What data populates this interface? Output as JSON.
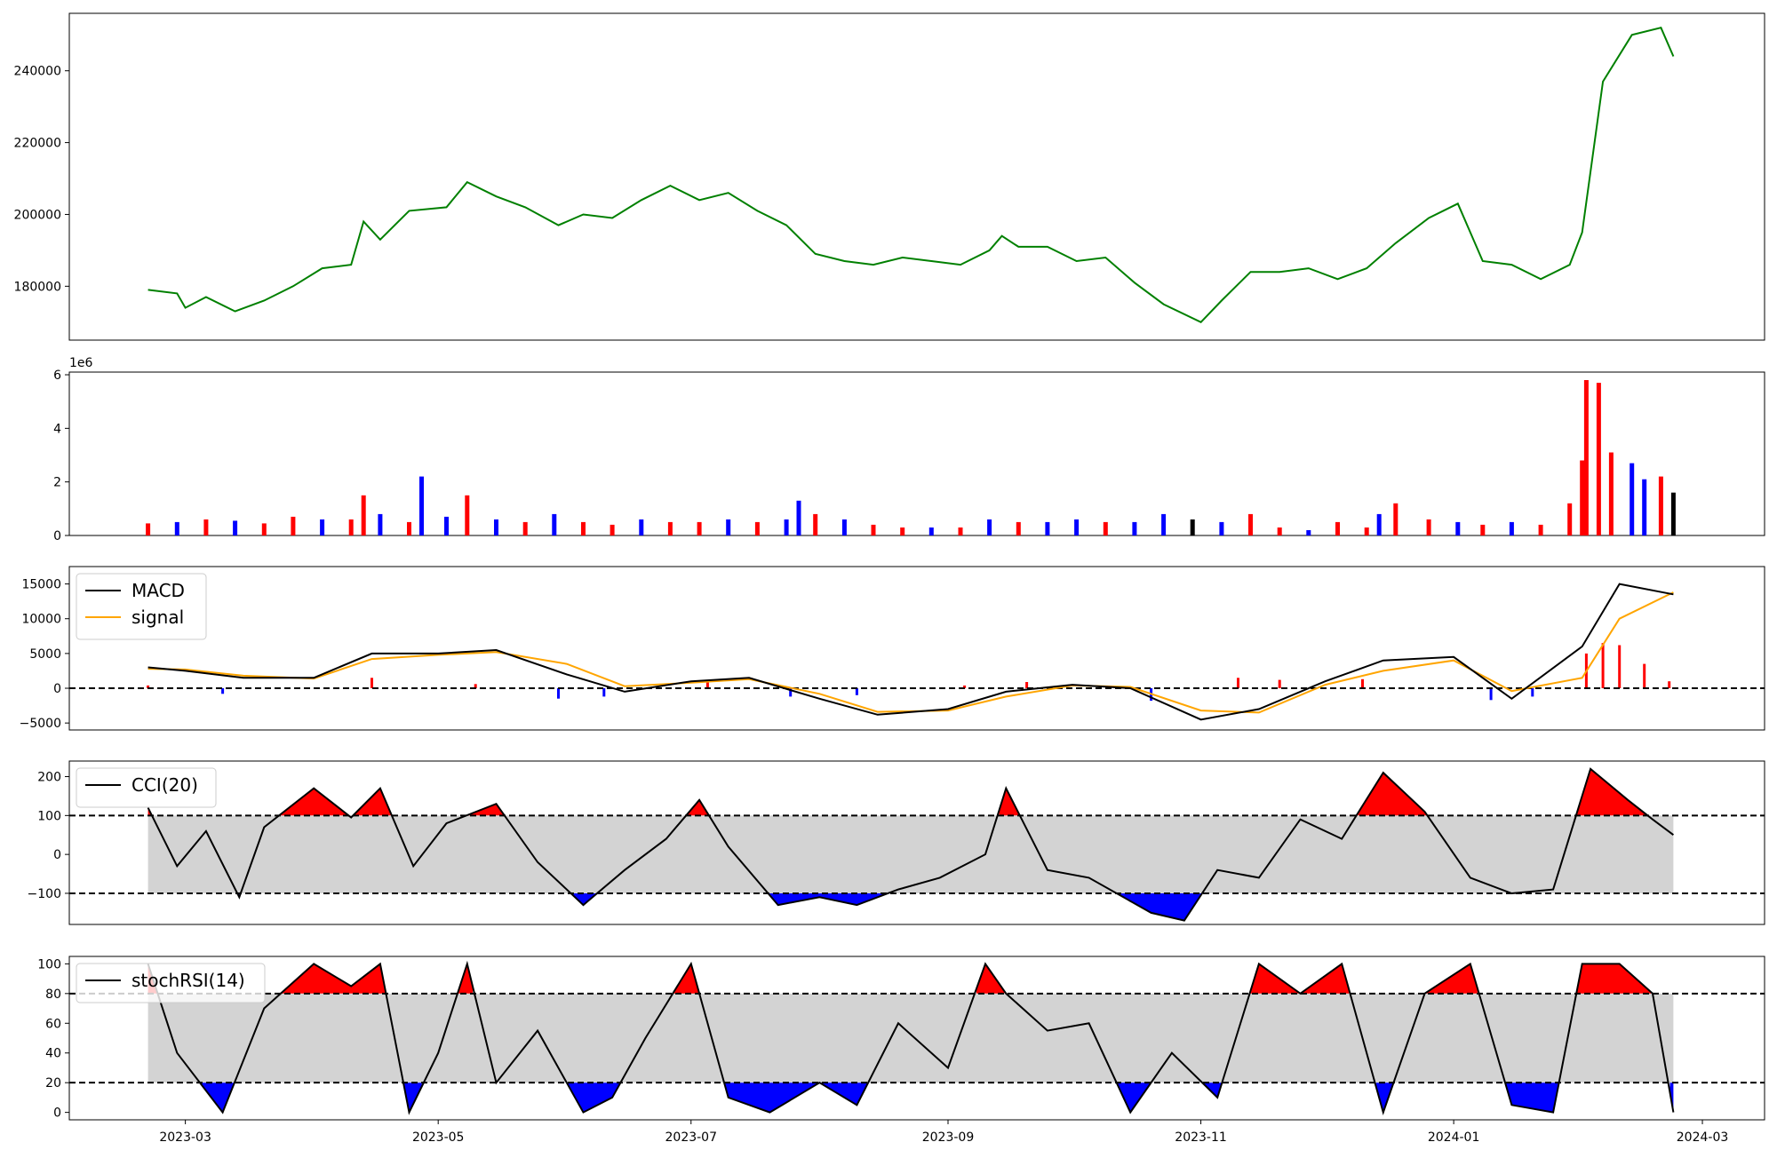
{
  "colors": {
    "price_line": "#008000",
    "up_bar": "#ff0000",
    "down_bar": "#0000ff",
    "flat_bar": "#000000",
    "macd_line": "#000000",
    "signal_line": "#ffa500",
    "band_fill": "#d3d3d3",
    "overbought_fill": "#ff0000",
    "oversold_fill": "#0000ff"
  },
  "chart_data": [
    {
      "id": "price",
      "type": "line",
      "ylim": [
        165000,
        256000
      ],
      "yticks": [
        180000,
        200000,
        220000,
        240000
      ],
      "ytick_labels": [
        "180000",
        "200000",
        "220000",
        "240000"
      ],
      "series": [
        {
          "x": [
            "2023-02-20",
            "2023-02-27",
            "2023-03-01",
            "2023-03-06",
            "2023-03-13",
            "2023-03-20",
            "2023-03-27",
            "2023-04-03",
            "2023-04-10",
            "2023-04-13",
            "2023-04-17",
            "2023-04-24",
            "2023-05-03",
            "2023-05-08",
            "2023-05-15",
            "2023-05-22",
            "2023-05-30",
            "2023-06-05",
            "2023-06-12",
            "2023-06-19",
            "2023-06-26",
            "2023-07-03",
            "2023-07-10",
            "2023-07-17",
            "2023-07-24",
            "2023-07-31",
            "2023-08-07",
            "2023-08-14",
            "2023-08-21",
            "2023-08-28",
            "2023-09-04",
            "2023-09-11",
            "2023-09-14",
            "2023-09-18",
            "2023-09-25",
            "2023-10-02",
            "2023-10-09",
            "2023-10-16",
            "2023-10-23",
            "2023-11-01",
            "2023-11-06",
            "2023-11-13",
            "2023-11-20",
            "2023-11-27",
            "2023-12-04",
            "2023-12-11",
            "2023-12-18",
            "2023-12-26",
            "2024-01-02",
            "2024-01-08",
            "2024-01-15",
            "2024-01-22",
            "2024-01-29",
            "2024-02-01",
            "2024-02-06",
            "2024-02-13",
            "2024-02-20",
            "2024-02-23"
          ],
          "y": [
            179000,
            178000,
            174000,
            177000,
            173000,
            176000,
            180000,
            185000,
            186000,
            198000,
            193000,
            201000,
            202000,
            209000,
            205000,
            202000,
            197000,
            200000,
            199000,
            204000,
            208000,
            204000,
            206000,
            201000,
            197000,
            189000,
            187000,
            186000,
            188000,
            187000,
            186000,
            190000,
            194000,
            191000,
            191000,
            187000,
            188000,
            181000,
            175000,
            170000,
            176000,
            184000,
            184000,
            185000,
            182000,
            185000,
            192000,
            199000,
            203000,
            187000,
            186000,
            182000,
            186000,
            195000,
            237000,
            250000,
            252000,
            244000
          ]
        }
      ]
    },
    {
      "id": "volume",
      "type": "bar",
      "axis_offset_label": "1e6",
      "ylim": [
        0,
        6.1
      ],
      "yticks": [
        0,
        2,
        4,
        6
      ],
      "ytick_labels": [
        "0",
        "2",
        "4",
        "6"
      ],
      "series": [
        {
          "name": "",
          "x": [
            "2023-02-20",
            "2023-02-27",
            "2023-03-06",
            "2023-03-13",
            "2023-03-20",
            "2023-03-27",
            "2023-04-03",
            "2023-04-10",
            "2023-04-13",
            "2023-04-17",
            "2023-04-24",
            "2023-04-27",
            "2023-05-03",
            "2023-05-08",
            "2023-05-15",
            "2023-05-22",
            "2023-05-29",
            "2023-06-05",
            "2023-06-12",
            "2023-06-19",
            "2023-06-26",
            "2023-07-03",
            "2023-07-10",
            "2023-07-17",
            "2023-07-24",
            "2023-07-27",
            "2023-07-31",
            "2023-08-07",
            "2023-08-14",
            "2023-08-21",
            "2023-08-28",
            "2023-09-04",
            "2023-09-11",
            "2023-09-18",
            "2023-09-25",
            "2023-10-02",
            "2023-10-09",
            "2023-10-16",
            "2023-10-23",
            "2023-10-30",
            "2023-11-06",
            "2023-11-13",
            "2023-11-20",
            "2023-11-27",
            "2023-12-04",
            "2023-12-11",
            "2023-12-14",
            "2023-12-18",
            "2023-12-26",
            "2024-01-02",
            "2024-01-08",
            "2024-01-15",
            "2024-01-22",
            "2024-01-29",
            "2024-02-01",
            "2024-02-02",
            "2024-02-05",
            "2024-02-08",
            "2024-02-13",
            "2024-02-16",
            "2024-02-20",
            "2024-02-23"
          ],
          "values": [
            0.45,
            0.5,
            0.6,
            0.55,
            0.45,
            0.7,
            0.6,
            0.6,
            1.5,
            0.8,
            0.5,
            2.2,
            0.7,
            1.5,
            0.6,
            0.5,
            0.8,
            0.5,
            0.4,
            0.6,
            0.5,
            0.5,
            0.6,
            0.5,
            0.6,
            1.3,
            0.8,
            0.6,
            0.4,
            0.3,
            0.3,
            0.3,
            0.6,
            0.5,
            0.5,
            0.6,
            0.5,
            0.5,
            0.8,
            0.6,
            0.5,
            0.8,
            0.3,
            0.2,
            0.5,
            0.3,
            0.8,
            1.2,
            0.6,
            0.5,
            0.4,
            0.5,
            0.4,
            1.2,
            2.8,
            5.8,
            5.7,
            3.1,
            2.7,
            2.1,
            2.2,
            1.6
          ],
          "direction": [
            "up",
            "down",
            "up",
            "down",
            "up",
            "up",
            "down",
            "up",
            "up",
            "down",
            "up",
            "down",
            "down",
            "up",
            "down",
            "up",
            "down",
            "up",
            "up",
            "down",
            "up",
            "up",
            "down",
            "up",
            "down",
            "down",
            "up",
            "down",
            "up",
            "up",
            "down",
            "up",
            "down",
            "up",
            "down",
            "down",
            "up",
            "down",
            "down",
            "flat",
            "down",
            "up",
            "up",
            "down",
            "up",
            "up",
            "down",
            "up",
            "up",
            "down",
            "up",
            "down",
            "up",
            "up",
            "up",
            "up",
            "up",
            "up",
            "down",
            "down",
            "up",
            "flat"
          ]
        }
      ]
    },
    {
      "id": "macd",
      "type": "line",
      "ylim": [
        -6000,
        17500
      ],
      "yticks": [
        -5000,
        0,
        5000,
        10000,
        15000
      ],
      "ytick_labels": [
        "−5000",
        "0",
        "5000",
        "10000",
        "15000"
      ],
      "legend": {
        "position": "upper-left",
        "entries": [
          "MACD",
          "signal"
        ]
      },
      "reference_lines": [
        0
      ],
      "x": [
        "2023-02-20",
        "2023-03-01",
        "2023-03-15",
        "2023-04-01",
        "2023-04-15",
        "2023-05-01",
        "2023-05-15",
        "2023-06-01",
        "2023-06-15",
        "2023-07-01",
        "2023-07-15",
        "2023-08-01",
        "2023-08-15",
        "2023-09-01",
        "2023-09-15",
        "2023-10-01",
        "2023-10-15",
        "2023-11-01",
        "2023-11-15",
        "2023-12-01",
        "2023-12-15",
        "2024-01-01",
        "2024-01-15",
        "2024-02-01",
        "2024-02-10",
        "2024-02-23"
      ],
      "series": [
        {
          "name": "MACD",
          "values": [
            3000,
            2500,
            1500,
            1500,
            5000,
            5000,
            5500,
            2000,
            -500,
            1000,
            1500,
            -1500,
            -3800,
            -3000,
            -500,
            500,
            0,
            -4500,
            -3000,
            1000,
            4000,
            4500,
            -1500,
            6000,
            15000,
            13500
          ]
        },
        {
          "name": "signal",
          "values": [
            2800,
            2700,
            1800,
            1400,
            4200,
            4800,
            5200,
            3500,
            300,
            800,
            1300,
            -800,
            -3400,
            -3200,
            -1200,
            400,
            200,
            -3200,
            -3500,
            500,
            2500,
            4000,
            -400,
            1500,
            10000,
            13800
          ]
        }
      ],
      "histogram": {
        "x": [
          "2023-02-20",
          "2023-03-10",
          "2023-04-15",
          "2023-05-10",
          "2023-05-30",
          "2023-06-10",
          "2023-07-05",
          "2023-07-25",
          "2023-08-10",
          "2023-09-05",
          "2023-09-20",
          "2023-10-20",
          "2023-11-10",
          "2023-11-20",
          "2023-12-10",
          "2024-01-10",
          "2024-01-20",
          "2024-02-02",
          "2024-02-06",
          "2024-02-10",
          "2024-02-16",
          "2024-02-22"
        ],
        "values": [
          400,
          -800,
          1500,
          600,
          -1500,
          -1200,
          900,
          -1200,
          -1000,
          400,
          900,
          -1800,
          1500,
          1200,
          1300,
          -1700,
          -1200,
          5000,
          6500,
          6200,
          3500,
          1000
        ]
      }
    },
    {
      "id": "cci",
      "type": "line",
      "ylim": [
        -180,
        240
      ],
      "yticks": [
        -100,
        0,
        100,
        200
      ],
      "ytick_labels": [
        "−100",
        "0",
        "100",
        "200"
      ],
      "legend": {
        "position": "upper-left",
        "entries": [
          "CCI(20)"
        ]
      },
      "thresholds": [
        100,
        -100
      ],
      "x": [
        "2023-02-20",
        "2023-02-27",
        "2023-03-06",
        "2023-03-14",
        "2023-03-20",
        "2023-04-01",
        "2023-04-10",
        "2023-04-17",
        "2023-04-25",
        "2023-05-03",
        "2023-05-15",
        "2023-05-25",
        "2023-06-05",
        "2023-06-15",
        "2023-06-25",
        "2023-07-03",
        "2023-07-10",
        "2023-07-22",
        "2023-08-01",
        "2023-08-10",
        "2023-08-20",
        "2023-08-30",
        "2023-09-10",
        "2023-09-15",
        "2023-09-25",
        "2023-10-05",
        "2023-10-15",
        "2023-10-20",
        "2023-10-28",
        "2023-11-05",
        "2023-11-15",
        "2023-11-25",
        "2023-12-05",
        "2023-12-15",
        "2023-12-25",
        "2024-01-05",
        "2024-01-15",
        "2024-01-25",
        "2024-02-03",
        "2024-02-12",
        "2024-02-18",
        "2024-02-23"
      ],
      "series": [
        {
          "name": "CCI(20)",
          "values": [
            120,
            -30,
            60,
            -110,
            70,
            170,
            95,
            170,
            -30,
            80,
            130,
            -20,
            -130,
            -40,
            40,
            140,
            20,
            -130,
            -110,
            -130,
            -90,
            -60,
            0,
            170,
            -40,
            -60,
            -120,
            -150,
            -170,
            -40,
            -60,
            90,
            40,
            210,
            110,
            -60,
            -100,
            -90,
            220,
            140,
            90,
            50
          ]
        }
      ]
    },
    {
      "id": "stochrsi",
      "type": "line",
      "ylim": [
        -5,
        105
      ],
      "yticks": [
        0,
        20,
        40,
        60,
        80,
        100
      ],
      "ytick_labels": [
        "0",
        "20",
        "40",
        "60",
        "80",
        "100"
      ],
      "legend": {
        "position": "upper-left",
        "entries": [
          "stochRSI(14)"
        ]
      },
      "thresholds": [
        80,
        20
      ],
      "xticks": [
        "2023-03-01",
        "2023-05-01",
        "2023-07-01",
        "2023-09-01",
        "2023-11-01",
        "2024-01-01",
        "2024-03-01"
      ],
      "xtick_labels": [
        "2023-03",
        "2023-05",
        "2023-07",
        "2023-09",
        "2023-11",
        "2024-01",
        "2024-03"
      ],
      "x": [
        "2023-02-20",
        "2023-02-27",
        "2023-03-10",
        "2023-03-20",
        "2023-04-01",
        "2023-04-10",
        "2023-04-17",
        "2023-04-24",
        "2023-05-01",
        "2023-05-08",
        "2023-05-15",
        "2023-05-25",
        "2023-06-05",
        "2023-06-12",
        "2023-06-20",
        "2023-07-01",
        "2023-07-10",
        "2023-07-20",
        "2023-08-01",
        "2023-08-10",
        "2023-08-20",
        "2023-09-01",
        "2023-09-10",
        "2023-09-15",
        "2023-09-25",
        "2023-10-05",
        "2023-10-15",
        "2023-10-25",
        "2023-11-05",
        "2023-11-15",
        "2023-11-25",
        "2023-12-05",
        "2023-12-15",
        "2023-12-25",
        "2024-01-05",
        "2024-01-15",
        "2024-01-25",
        "2024-02-01",
        "2024-02-10",
        "2024-02-18",
        "2024-02-23"
      ],
      "series": [
        {
          "name": "stochRSI(14)",
          "values": [
            100,
            40,
            0,
            70,
            100,
            85,
            100,
            0,
            40,
            100,
            20,
            55,
            0,
            10,
            50,
            100,
            10,
            0,
            20,
            5,
            60,
            30,
            100,
            80,
            55,
            60,
            0,
            40,
            10,
            100,
            80,
            100,
            0,
            80,
            100,
            5,
            0,
            100,
            100,
            80,
            0
          ]
        }
      ]
    }
  ]
}
